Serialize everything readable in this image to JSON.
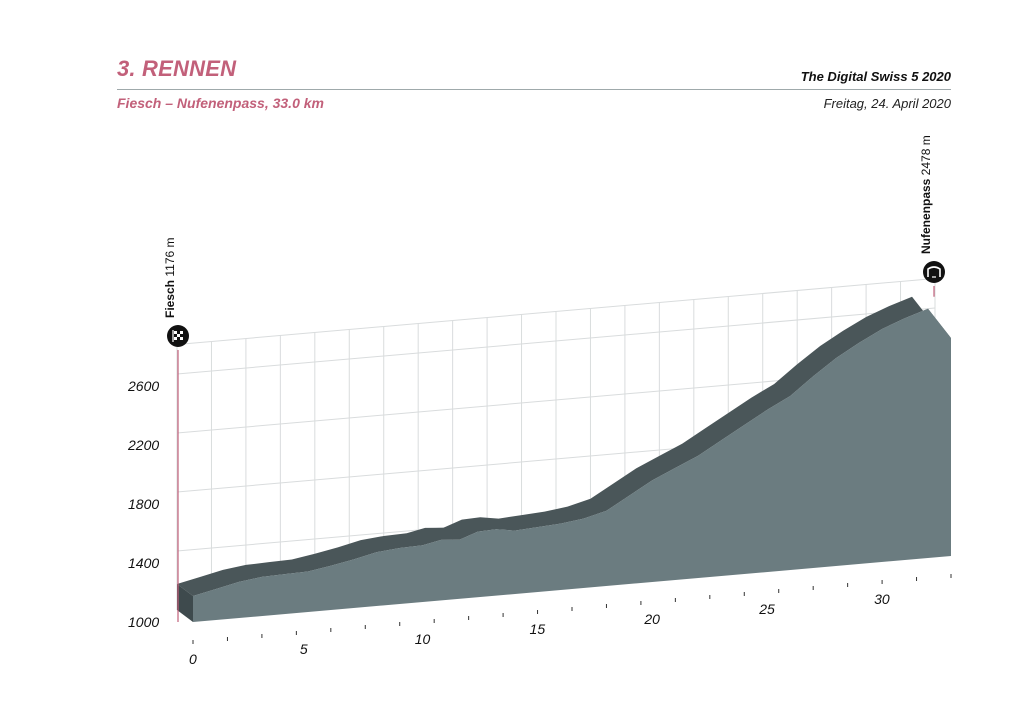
{
  "header": {
    "title": "3. RENNEN",
    "subtitle": "Fiesch – Nufenenpass, 33.0 km",
    "event": "The Digital Swiss 5 2020",
    "date": "Freitag, 24. April 2020"
  },
  "colors": {
    "accent": "#c2607a",
    "profile_front": "#6b7c80",
    "profile_top": "#4a5659",
    "profile_side": "#3e4a4d",
    "grid": "#d9dcdd",
    "marker": "#c2607a"
  },
  "chart_data": {
    "type": "area",
    "title": "",
    "xlabel": "",
    "ylabel": "",
    "x_ticks": [
      0,
      5,
      10,
      15,
      20,
      25,
      30
    ],
    "y_ticks": [
      1000,
      1400,
      1800,
      2200,
      2600
    ],
    "xlim": [
      0,
      33
    ],
    "ylim": [
      1000,
      2800
    ],
    "grid": true,
    "series": [
      {
        "x": [
          0,
          1,
          2,
          3,
          4,
          5,
          6,
          7,
          8,
          9,
          10,
          10.8,
          11.6,
          12.4,
          13.2,
          14,
          15,
          16,
          17,
          18,
          19,
          20,
          21,
          22,
          23,
          24,
          25,
          26,
          27,
          28,
          29,
          30,
          31,
          32,
          33
        ],
        "y": [
          1176,
          1210,
          1245,
          1265,
          1270,
          1275,
          1300,
          1330,
          1365,
          1380,
          1385,
          1410,
          1400,
          1445,
          1450,
          1430,
          1440,
          1450,
          1470,
          1510,
          1600,
          1690,
          1760,
          1830,
          1920,
          2010,
          2100,
          2180,
          2300,
          2410,
          2500,
          2580,
          2640,
          2690,
          2478
        ]
      }
    ],
    "waypoints": [
      {
        "name": "Fiesch",
        "altitude": "1176 m",
        "km": 0,
        "icon": "checkered-flag-icon"
      },
      {
        "name": "Nufenenpass",
        "altitude": "2478 m",
        "km": 33,
        "icon": "mountain-pass-icon"
      }
    ]
  }
}
